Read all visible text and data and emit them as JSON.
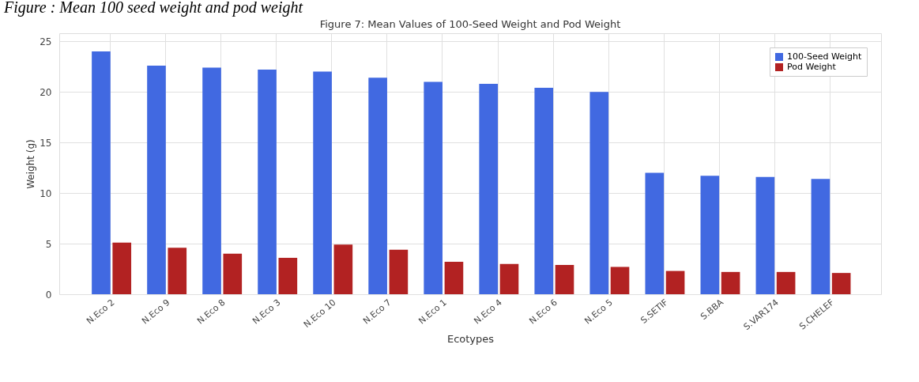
{
  "chart_data": {
    "type": "bar",
    "title": "Figure 7: Mean Values of 100-Seed Weight and Pod Weight",
    "xlabel": "Ecotypes",
    "ylabel": "Weight (g)",
    "annotations": [
      "Figure : Mean 100 seed weight and pod weight"
    ],
    "categories": [
      "N.Eco 2",
      "N.Eco 9",
      "N.Eco 8",
      "N.Eco 3",
      "N.Eco 10",
      "N.Eco 7",
      "N.Eco 1",
      "N.Eco 4",
      "N.Eco 6",
      "N.Eco 5",
      "S.SETIF",
      "S.BBA",
      "S.VAR174",
      "S.CHELEF"
    ],
    "series": [
      {
        "name": "100-Seed Weight",
        "color": "#4169e1",
        "values": [
          24.0,
          22.6,
          22.4,
          22.2,
          22.0,
          21.4,
          21.0,
          20.8,
          20.4,
          20.0,
          12.0,
          11.7,
          11.6,
          11.4
        ]
      },
      {
        "name": "Pod Weight",
        "color": "#b22222",
        "values": [
          5.1,
          4.6,
          4.0,
          3.6,
          4.9,
          4.4,
          3.2,
          3.0,
          2.9,
          2.7,
          2.3,
          2.2,
          2.2,
          2.1
        ]
      }
    ],
    "ylim": [
      0,
      25.8
    ],
    "yticks": [
      0,
      5,
      10,
      15,
      20,
      25
    ],
    "grid": true,
    "legend": "top right"
  }
}
